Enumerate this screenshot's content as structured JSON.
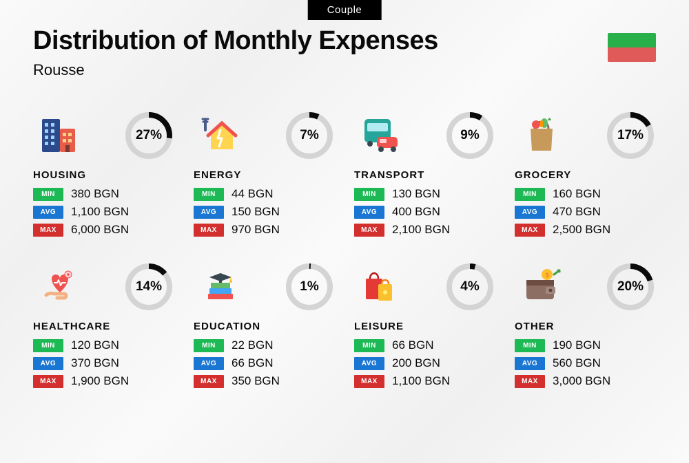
{
  "tab_label": "Couple",
  "title": "Distribution of Monthly Expenses",
  "subtitle": "Rousse",
  "flag": {
    "top_color": "#2ab04a",
    "bottom_color": "#e05a5a"
  },
  "currency": "BGN",
  "donut": {
    "track_color": "#d4d4d4",
    "fill_color": "#0a0a0a",
    "stroke_width": 8,
    "radius": 30,
    "size": 74
  },
  "pills": {
    "min": {
      "label": "MIN",
      "color": "#1db954"
    },
    "avg": {
      "label": "AVG",
      "color": "#1976d2"
    },
    "max": {
      "label": "MAX",
      "color": "#d32f2f"
    }
  },
  "categories": [
    {
      "key": "housing",
      "name": "HOUSING",
      "percent": 27,
      "percent_label": "27%",
      "min": "380 BGN",
      "avg": "1,100 BGN",
      "max": "6,000 BGN",
      "icon": "building"
    },
    {
      "key": "energy",
      "name": "ENERGY",
      "percent": 7,
      "percent_label": "7%",
      "min": "44 BGN",
      "avg": "150 BGN",
      "max": "970 BGN",
      "icon": "energy-house"
    },
    {
      "key": "transport",
      "name": "TRANSPORT",
      "percent": 9,
      "percent_label": "9%",
      "min": "130 BGN",
      "avg": "400 BGN",
      "max": "2,100 BGN",
      "icon": "bus-car"
    },
    {
      "key": "grocery",
      "name": "GROCERY",
      "percent": 17,
      "percent_label": "17%",
      "min": "160 BGN",
      "avg": "470 BGN",
      "max": "2,500 BGN",
      "icon": "grocery-bag"
    },
    {
      "key": "healthcare",
      "name": "HEALTHCARE",
      "percent": 14,
      "percent_label": "14%",
      "min": "120 BGN",
      "avg": "370 BGN",
      "max": "1,900 BGN",
      "icon": "heart-hand"
    },
    {
      "key": "education",
      "name": "EDUCATION",
      "percent": 1,
      "percent_label": "1%",
      "min": "22 BGN",
      "avg": "66 BGN",
      "max": "350 BGN",
      "icon": "grad-books"
    },
    {
      "key": "leisure",
      "name": "LEISURE",
      "percent": 4,
      "percent_label": "4%",
      "min": "66 BGN",
      "avg": "200 BGN",
      "max": "1,100 BGN",
      "icon": "shopping-bags"
    },
    {
      "key": "other",
      "name": "OTHER",
      "percent": 20,
      "percent_label": "20%",
      "min": "190 BGN",
      "avg": "560 BGN",
      "max": "3,000 BGN",
      "icon": "wallet"
    }
  ]
}
